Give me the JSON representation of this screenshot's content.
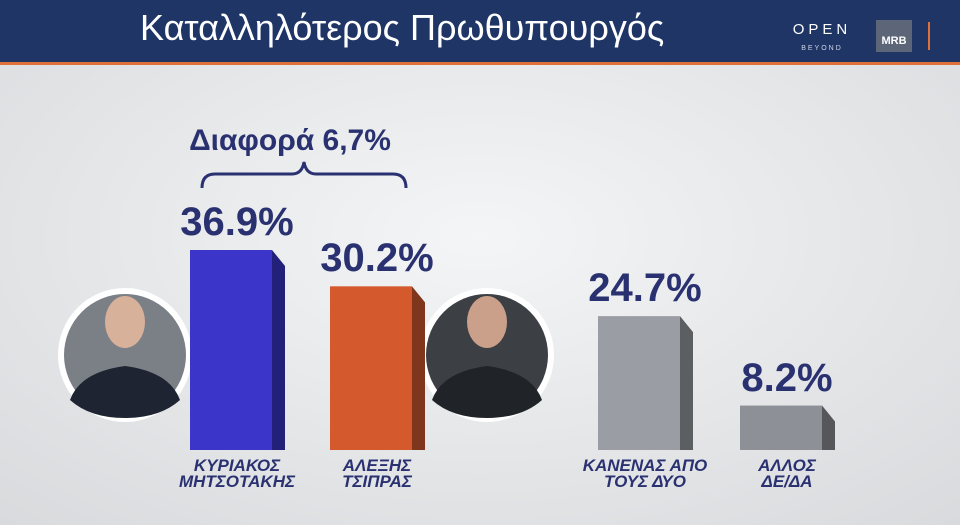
{
  "header": {
    "logo": "OPEN",
    "logo_sub": "BEYOND",
    "pollster": "MRB"
  },
  "chart_data": {
    "type": "bar",
    "title": "Καταλληλότερος Πρωθυπουργός",
    "annotation": "Διαφορά 6,7%",
    "categories": [
      "ΚΥΡΙΑΚΟΣ\nΜΗΤΣΟΤΑΚΗΣ",
      "ΑΛΕΞΗΣ\nΤΣΙΠΡΑΣ",
      "ΚΑΝΕΝΑΣ ΑΠΟ\nΤΟΥΣ ΔΥΟ",
      "ΑΛΛΟΣ\nΔΕ/ΔΑ"
    ],
    "values": [
      36.9,
      30.2,
      24.7,
      8.2
    ],
    "value_labels": [
      "36.9%",
      "30.2%",
      "24.7%",
      "8.2%"
    ],
    "colors": [
      "#3b35c9",
      "#d45a2e",
      "#9a9ea4",
      "#8d9197"
    ]
  }
}
